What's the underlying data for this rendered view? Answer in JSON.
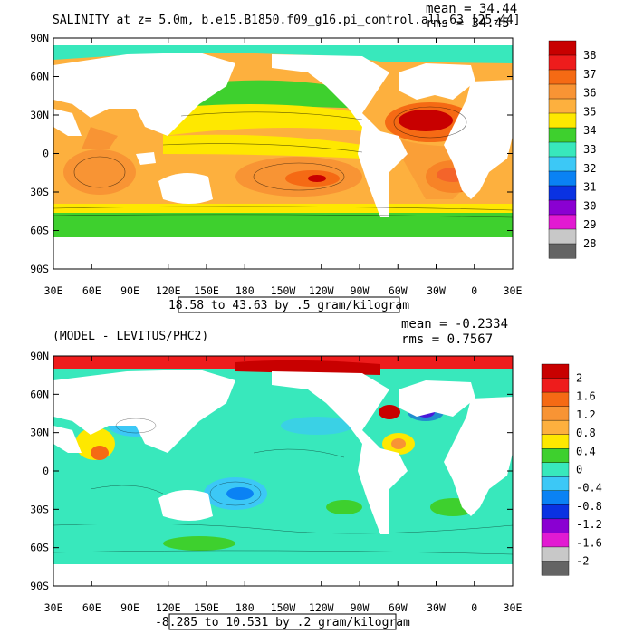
{
  "chart_data": [
    {
      "type": "heatmap",
      "title": "SALINITY at z=   5.0m, b.e15.B1850.f09_g16.pi_control.all.63 [25-44]",
      "mean_text": "mean = 34.44",
      "rms_text": "rms = 34.45",
      "contour_info": "18.58 to 43.63 by .5 gram/kilogram",
      "x_ticks": [
        "30E",
        "60E",
        "90E",
        "120E",
        "150E",
        "180",
        "150W",
        "120W",
        "90W",
        "60W",
        "30W",
        "0",
        "30E"
      ],
      "y_ticks": [
        "90N",
        "60N",
        "30N",
        "0",
        "30S",
        "60S",
        "90S"
      ],
      "colorbar": {
        "labels": [
          "38",
          "37",
          "36",
          "35",
          "34",
          "33",
          "32",
          "31",
          "30",
          "29",
          "28"
        ],
        "colors": [
          "#c80000",
          "#ee1c1c",
          "#f56a14",
          "#f89434",
          "#fdb03e",
          "#fee800",
          "#3ed02e",
          "#38e8bc",
          "#3cc8f6",
          "#0a82f4",
          "#0a32e2",
          "#8a00d2",
          "#e21ad2",
          "#c8c8c8",
          "#646464"
        ]
      }
    },
    {
      "type": "heatmap",
      "title": "(MODEL - LEVITUS/PHC2)",
      "mean_text": "mean = -0.2334",
      "rms_text": "rms = 0.7567",
      "contour_info": "-8.285 to 10.531 by .2 gram/kilogram",
      "x_ticks": [
        "30E",
        "60E",
        "90E",
        "120E",
        "150E",
        "180",
        "150W",
        "120W",
        "90W",
        "60W",
        "30W",
        "0",
        "30E"
      ],
      "y_ticks": [
        "90N",
        "60N",
        "30N",
        "0",
        "30S",
        "60S",
        "90S"
      ],
      "colorbar": {
        "labels": [
          "2",
          "1.6",
          "1.2",
          "0.8",
          "0.4",
          "0",
          "-0.4",
          "-0.8",
          "-1.2",
          "-1.6",
          "-2"
        ],
        "colors": [
          "#c80000",
          "#ee1c1c",
          "#f56a14",
          "#f89434",
          "#fdb03e",
          "#fee800",
          "#3ed02e",
          "#38e8bc",
          "#3cc8f6",
          "#0a82f4",
          "#0a32e2",
          "#8a00d2",
          "#e21ad2",
          "#c8c8c8",
          "#646464"
        ]
      }
    }
  ]
}
